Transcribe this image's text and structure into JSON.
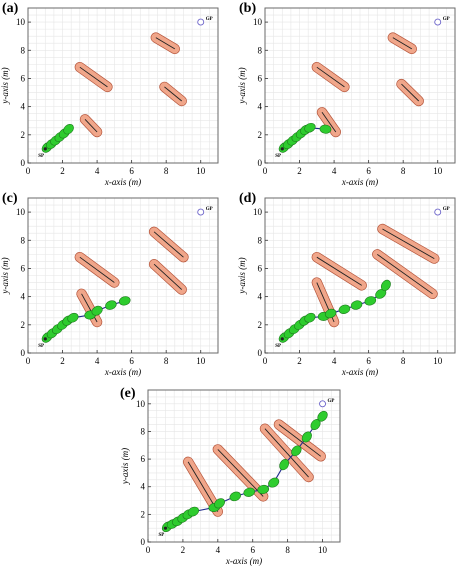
{
  "chart_data": [
    {
      "panel": "(a)",
      "type": "scatter",
      "xlabel": "x-axis (m)",
      "ylabel": "y-axis (m)",
      "xlim": [
        0,
        11
      ],
      "ylim": [
        0,
        11
      ],
      "xticks": [
        "0",
        "2",
        "4",
        "6",
        "8",
        "10"
      ],
      "yticks": [
        "0",
        "2",
        "4",
        "6",
        "8",
        "10"
      ],
      "grid": true,
      "sp_label": "SP",
      "gp_label": "GP",
      "start": [
        1,
        1
      ],
      "goal": [
        10,
        10
      ],
      "obstacles": [
        {
          "from": [
            3.0,
            6.8
          ],
          "to": [
            4.6,
            5.4
          ]
        },
        {
          "from": [
            3.3,
            3.1
          ],
          "to": [
            4.0,
            2.2
          ]
        },
        {
          "from": [
            7.4,
            8.9
          ],
          "to": [
            8.5,
            8.1
          ]
        },
        {
          "from": [
            7.9,
            5.4
          ],
          "to": [
            8.9,
            4.4
          ]
        }
      ],
      "path": [
        [
          1.1,
          1.1
        ],
        [
          1.35,
          1.35
        ],
        [
          1.6,
          1.6
        ],
        [
          1.85,
          1.85
        ],
        [
          2.1,
          2.1
        ],
        [
          2.35,
          2.4
        ]
      ]
    },
    {
      "panel": "(b)",
      "type": "scatter",
      "xlabel": "x-axis (m)",
      "ylabel": "y-axis (m)",
      "xlim": [
        0,
        11
      ],
      "ylim": [
        0,
        11
      ],
      "xticks": [
        "0",
        "2",
        "4",
        "6",
        "8",
        "10"
      ],
      "yticks": [
        "0",
        "2",
        "4",
        "6",
        "8",
        "10"
      ],
      "grid": true,
      "sp_label": "SP",
      "gp_label": "GP",
      "start": [
        1,
        1
      ],
      "goal": [
        10,
        10
      ],
      "obstacles": [
        {
          "from": [
            3.0,
            6.8
          ],
          "to": [
            4.6,
            5.4
          ]
        },
        {
          "from": [
            3.3,
            3.6
          ],
          "to": [
            4.1,
            2.2
          ]
        },
        {
          "from": [
            7.4,
            8.9
          ],
          "to": [
            8.5,
            8.1
          ]
        },
        {
          "from": [
            7.9,
            5.6
          ],
          "to": [
            8.9,
            4.4
          ]
        }
      ],
      "path": [
        [
          1.1,
          1.1
        ],
        [
          1.35,
          1.35
        ],
        [
          1.6,
          1.6
        ],
        [
          1.85,
          1.85
        ],
        [
          2.1,
          2.1
        ],
        [
          2.35,
          2.35
        ],
        [
          2.6,
          2.5
        ],
        [
          3.5,
          2.4
        ]
      ]
    },
    {
      "panel": "(c)",
      "type": "scatter",
      "xlabel": "x-axis (m)",
      "ylabel": "y-axis (m)",
      "xlim": [
        0,
        11
      ],
      "ylim": [
        0,
        11
      ],
      "xticks": [
        "0",
        "2",
        "4",
        "6",
        "8",
        "10"
      ],
      "yticks": [
        "0",
        "2",
        "4",
        "6",
        "8",
        "10"
      ],
      "grid": true,
      "sp_label": "SP",
      "gp_label": "GP",
      "start": [
        1,
        1
      ],
      "goal": [
        10,
        10
      ],
      "obstacles": [
        {
          "from": [
            3.0,
            6.8
          ],
          "to": [
            5.0,
            5.0
          ]
        },
        {
          "from": [
            3.1,
            4.2
          ],
          "to": [
            4.0,
            2.2
          ]
        },
        {
          "from": [
            7.3,
            8.6
          ],
          "to": [
            9.0,
            6.8
          ]
        },
        {
          "from": [
            7.3,
            6.3
          ],
          "to": [
            8.9,
            4.5
          ]
        }
      ],
      "path": [
        [
          1.1,
          1.1
        ],
        [
          1.4,
          1.4
        ],
        [
          1.7,
          1.7
        ],
        [
          2.0,
          2.0
        ],
        [
          2.3,
          2.3
        ],
        [
          2.6,
          2.5
        ],
        [
          3.6,
          2.7
        ],
        [
          4.0,
          3.0
        ],
        [
          4.8,
          3.4
        ],
        [
          5.6,
          3.7
        ]
      ]
    },
    {
      "panel": "(d)",
      "type": "scatter",
      "xlabel": "x-axis (m)",
      "ylabel": "y-axis (m)",
      "xlim": [
        0,
        11
      ],
      "ylim": [
        0,
        11
      ],
      "xticks": [
        "0",
        "2",
        "4",
        "6",
        "8",
        "10"
      ],
      "yticks": [
        "0",
        "2",
        "4",
        "6",
        "8",
        "10"
      ],
      "grid": true,
      "sp_label": "SP",
      "gp_label": "GP",
      "start": [
        1,
        1
      ],
      "goal": [
        10,
        10
      ],
      "obstacles": [
        {
          "from": [
            3.0,
            6.8
          ],
          "to": [
            5.6,
            4.8
          ]
        },
        {
          "from": [
            3.0,
            5.0
          ],
          "to": [
            4.0,
            2.2
          ]
        },
        {
          "from": [
            6.8,
            8.8
          ],
          "to": [
            9.8,
            6.7
          ]
        },
        {
          "from": [
            6.5,
            7.0
          ],
          "to": [
            9.7,
            4.2
          ]
        }
      ],
      "path": [
        [
          1.1,
          1.1
        ],
        [
          1.4,
          1.4
        ],
        [
          1.7,
          1.7
        ],
        [
          2.0,
          2.0
        ],
        [
          2.3,
          2.3
        ],
        [
          2.6,
          2.5
        ],
        [
          3.4,
          2.6
        ],
        [
          3.8,
          2.8
        ],
        [
          4.6,
          3.1
        ],
        [
          5.3,
          3.4
        ],
        [
          6.1,
          3.7
        ],
        [
          6.7,
          4.2
        ],
        [
          7.0,
          4.8
        ]
      ]
    },
    {
      "panel": "(e)",
      "type": "scatter",
      "xlabel": "x-axis (m)",
      "ylabel": "y-axis (m)",
      "xlim": [
        0,
        11
      ],
      "ylim": [
        0,
        11
      ],
      "xticks": [
        "0",
        "2",
        "4",
        "6",
        "8",
        "10"
      ],
      "yticks": [
        "0",
        "2",
        "4",
        "6",
        "8",
        "10"
      ],
      "grid": true,
      "sp_label": "SP",
      "gp_label": "GP",
      "start": [
        1,
        1
      ],
      "goal": [
        10,
        10
      ],
      "obstacles": [
        {
          "from": [
            2.3,
            5.8
          ],
          "to": [
            4.0,
            2.2
          ]
        },
        {
          "from": [
            4.0,
            6.7
          ],
          "to": [
            6.6,
            3.3
          ]
        },
        {
          "from": [
            6.7,
            8.2
          ],
          "to": [
            9.2,
            4.7
          ]
        },
        {
          "from": [
            7.5,
            8.5
          ],
          "to": [
            9.9,
            6.2
          ]
        }
      ],
      "path": [
        [
          1.1,
          1.1
        ],
        [
          1.4,
          1.3
        ],
        [
          1.7,
          1.5
        ],
        [
          2.0,
          1.75
        ],
        [
          2.3,
          2.0
        ],
        [
          2.6,
          2.2
        ],
        [
          3.8,
          2.5
        ],
        [
          4.1,
          2.8
        ],
        [
          5.0,
          3.3
        ],
        [
          5.8,
          3.6
        ],
        [
          6.6,
          3.8
        ],
        [
          7.2,
          4.3
        ],
        [
          7.8,
          5.6
        ],
        [
          8.5,
          6.6
        ],
        [
          9.1,
          7.6
        ],
        [
          9.6,
          8.5
        ],
        [
          10.0,
          9.1
        ]
      ]
    }
  ]
}
